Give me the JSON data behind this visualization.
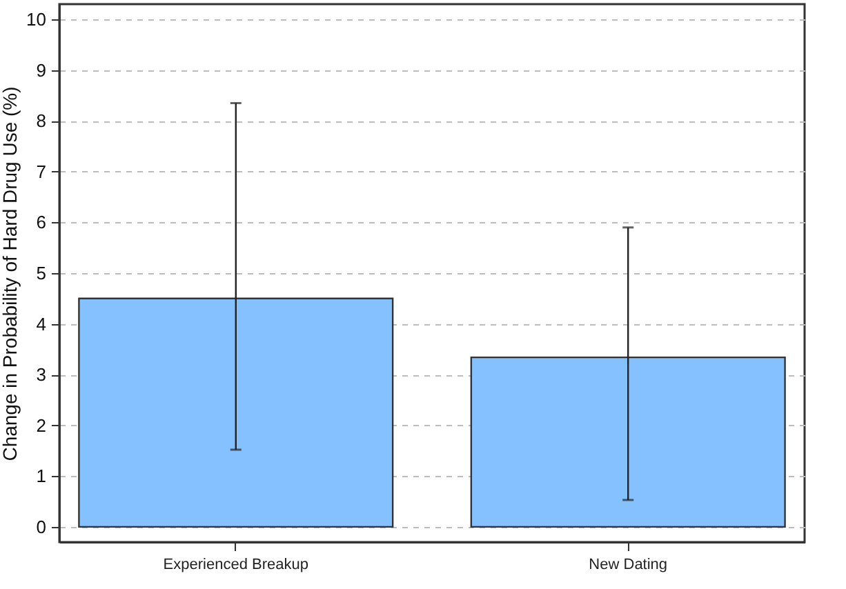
{
  "chart_data": {
    "type": "bar",
    "ylabel": "Change in Probability of Hard Drug Use (%)",
    "categories": [
      "Experienced Breakup",
      "New Dating"
    ],
    "values": [
      4.5,
      3.34
    ],
    "color": "#85c1ff",
    "errors": [
      [
        1.52,
        8.35
      ],
      [
        0.53,
        5.9
      ]
    ],
    "ylim": [
      -0.3,
      10.3
    ],
    "yticks": [
      0,
      1,
      2,
      3,
      4,
      5,
      6,
      7,
      8,
      9,
      10
    ],
    "grid": "y"
  }
}
